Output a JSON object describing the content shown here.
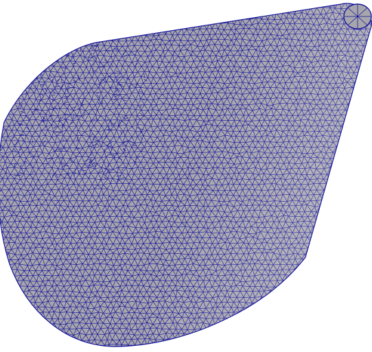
{
  "scene": {
    "subject": "triangulated-cone-mesh",
    "background_color": "#ffffff",
    "surface_color": "#a8a6ad",
    "edge_color": "#16169a",
    "shading_light_color": "#c8c6cc",
    "shading_dark_color": "#6f6d78"
  }
}
